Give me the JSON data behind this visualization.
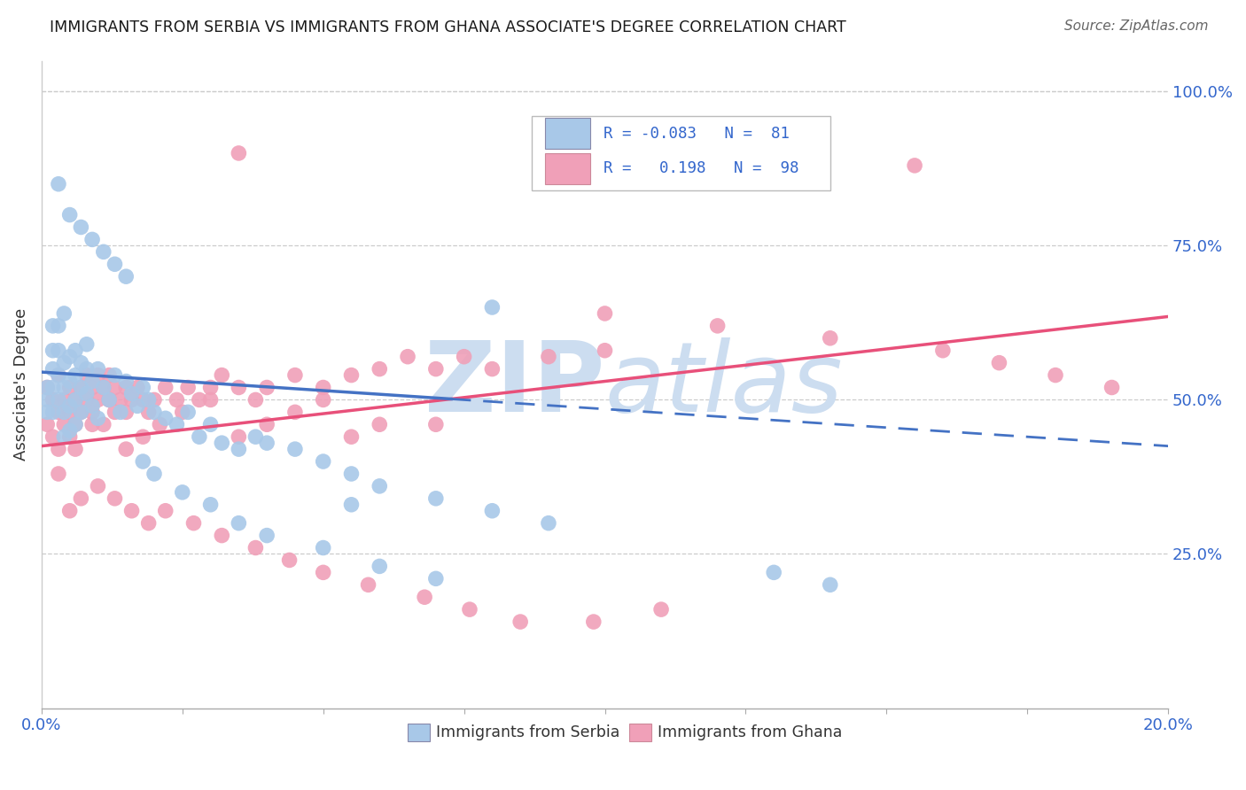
{
  "title": "IMMIGRANTS FROM SERBIA VS IMMIGRANTS FROM GHANA ASSOCIATE'S DEGREE CORRELATION CHART",
  "source": "Source: ZipAtlas.com",
  "ylabel": "Associate's Degree",
  "ytick_labels": [
    "100.0%",
    "75.0%",
    "50.0%",
    "25.0%"
  ],
  "ytick_positions": [
    1.0,
    0.75,
    0.5,
    0.25
  ],
  "serbia_color": "#a8c8e8",
  "ghana_color": "#f0a0b8",
  "serbia_line_color": "#4472c4",
  "ghana_line_color": "#e8507a",
  "title_color": "#1a1a1a",
  "source_color": "#666666",
  "axis_label_color": "#3366cc",
  "watermark_text": "ZIPatlas",
  "watermark_color": "#ccddf0",
  "xlim": [
    0.0,
    0.2
  ],
  "ylim": [
    0.0,
    1.05
  ],
  "serbia_R": -0.083,
  "ghana_R": 0.198,
  "serbia_N": 81,
  "ghana_N": 98,
  "serbia_line_x0": 0.0,
  "serbia_line_y0": 0.545,
  "serbia_line_x1": 0.2,
  "serbia_line_y1": 0.425,
  "ghana_line_x0": 0.0,
  "ghana_line_y0": 0.425,
  "ghana_line_x1": 0.2,
  "ghana_line_y1": 0.635,
  "serbia_pts_x": [
    0.001,
    0.001,
    0.001,
    0.002,
    0.002,
    0.002,
    0.002,
    0.002,
    0.003,
    0.003,
    0.003,
    0.003,
    0.004,
    0.004,
    0.004,
    0.004,
    0.004,
    0.005,
    0.005,
    0.005,
    0.005,
    0.006,
    0.006,
    0.006,
    0.006,
    0.007,
    0.007,
    0.007,
    0.008,
    0.008,
    0.008,
    0.009,
    0.009,
    0.01,
    0.01,
    0.011,
    0.012,
    0.013,
    0.014,
    0.015,
    0.016,
    0.017,
    0.018,
    0.019,
    0.02,
    0.022,
    0.024,
    0.026,
    0.028,
    0.03,
    0.032,
    0.035,
    0.038,
    0.04,
    0.045,
    0.05,
    0.055,
    0.06,
    0.07,
    0.08,
    0.09,
    0.003,
    0.005,
    0.007,
    0.009,
    0.011,
    0.013,
    0.015,
    0.018,
    0.02,
    0.025,
    0.03,
    0.035,
    0.04,
    0.05,
    0.06,
    0.07,
    0.055,
    0.13,
    0.14,
    0.08
  ],
  "serbia_pts_y": [
    0.5,
    0.52,
    0.48,
    0.55,
    0.58,
    0.52,
    0.48,
    0.62,
    0.5,
    0.54,
    0.58,
    0.62,
    0.52,
    0.56,
    0.48,
    0.44,
    0.64,
    0.53,
    0.57,
    0.49,
    0.45,
    0.54,
    0.58,
    0.5,
    0.46,
    0.52,
    0.56,
    0.48,
    0.55,
    0.51,
    0.59,
    0.53,
    0.49,
    0.55,
    0.47,
    0.52,
    0.5,
    0.54,
    0.48,
    0.53,
    0.51,
    0.49,
    0.52,
    0.5,
    0.48,
    0.47,
    0.46,
    0.48,
    0.44,
    0.46,
    0.43,
    0.42,
    0.44,
    0.43,
    0.42,
    0.4,
    0.38,
    0.36,
    0.34,
    0.32,
    0.3,
    0.85,
    0.8,
    0.78,
    0.76,
    0.74,
    0.72,
    0.7,
    0.4,
    0.38,
    0.35,
    0.33,
    0.3,
    0.28,
    0.26,
    0.23,
    0.21,
    0.33,
    0.22,
    0.2,
    0.65
  ],
  "ghana_pts_x": [
    0.001,
    0.001,
    0.002,
    0.002,
    0.003,
    0.003,
    0.003,
    0.004,
    0.004,
    0.005,
    0.005,
    0.005,
    0.006,
    0.006,
    0.007,
    0.007,
    0.008,
    0.008,
    0.009,
    0.009,
    0.01,
    0.01,
    0.011,
    0.011,
    0.012,
    0.012,
    0.013,
    0.013,
    0.014,
    0.015,
    0.015,
    0.016,
    0.017,
    0.018,
    0.019,
    0.02,
    0.022,
    0.024,
    0.026,
    0.028,
    0.03,
    0.032,
    0.035,
    0.038,
    0.04,
    0.045,
    0.05,
    0.055,
    0.06,
    0.065,
    0.07,
    0.075,
    0.08,
    0.09,
    0.1,
    0.003,
    0.006,
    0.009,
    0.012,
    0.015,
    0.018,
    0.021,
    0.025,
    0.03,
    0.035,
    0.04,
    0.045,
    0.05,
    0.055,
    0.06,
    0.07,
    0.035,
    0.155,
    0.1,
    0.12,
    0.14,
    0.16,
    0.17,
    0.18,
    0.19,
    0.005,
    0.007,
    0.01,
    0.013,
    0.016,
    0.019,
    0.022,
    0.027,
    0.032,
    0.038,
    0.044,
    0.05,
    0.058,
    0.068,
    0.076,
    0.085,
    0.098,
    0.11
  ],
  "ghana_pts_y": [
    0.46,
    0.52,
    0.44,
    0.5,
    0.48,
    0.54,
    0.42,
    0.5,
    0.46,
    0.52,
    0.48,
    0.44,
    0.5,
    0.46,
    0.52,
    0.48,
    0.54,
    0.5,
    0.52,
    0.48,
    0.54,
    0.5,
    0.52,
    0.46,
    0.54,
    0.5,
    0.52,
    0.48,
    0.5,
    0.52,
    0.48,
    0.5,
    0.52,
    0.5,
    0.48,
    0.5,
    0.52,
    0.5,
    0.52,
    0.5,
    0.52,
    0.54,
    0.52,
    0.5,
    0.52,
    0.54,
    0.52,
    0.54,
    0.55,
    0.57,
    0.55,
    0.57,
    0.55,
    0.57,
    0.58,
    0.38,
    0.42,
    0.46,
    0.5,
    0.42,
    0.44,
    0.46,
    0.48,
    0.5,
    0.44,
    0.46,
    0.48,
    0.5,
    0.44,
    0.46,
    0.46,
    0.9,
    0.88,
    0.64,
    0.62,
    0.6,
    0.58,
    0.56,
    0.54,
    0.52,
    0.32,
    0.34,
    0.36,
    0.34,
    0.32,
    0.3,
    0.32,
    0.3,
    0.28,
    0.26,
    0.24,
    0.22,
    0.2,
    0.18,
    0.16,
    0.14,
    0.14,
    0.16
  ]
}
